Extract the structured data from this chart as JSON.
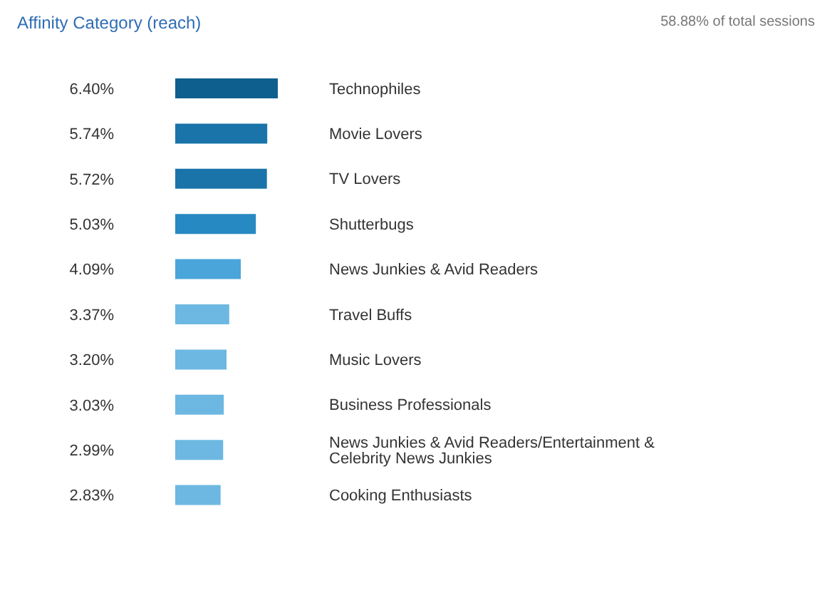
{
  "chart_data": {
    "type": "bar",
    "orientation": "horizontal",
    "title": "Affinity Category (reach)",
    "annotations": [
      "58.88% of total sessions"
    ],
    "categories": [
      "Technophiles",
      "Movie Lovers",
      "TV Lovers",
      "Shutterbugs",
      "News Junkies & Avid Readers",
      "Travel Buffs",
      "Music Lovers",
      "Business Professionals",
      "News Junkies & Avid Readers/Entertainment & Celebrity News Junkies",
      "Cooking Enthusiasts"
    ],
    "values": [
      6.4,
      5.74,
      5.72,
      5.03,
      4.09,
      3.37,
      3.2,
      3.03,
      2.99,
      2.83
    ],
    "value_labels": [
      "6.40%",
      "5.74%",
      "5.72%",
      "5.03%",
      "4.09%",
      "3.37%",
      "3.20%",
      "3.03%",
      "2.99%",
      "2.83%"
    ],
    "colors": [
      "#0e5f8e",
      "#1a74a9",
      "#1a74a9",
      "#2689c2",
      "#4aa5da",
      "#6cb8e2",
      "#6cb8e2",
      "#6cb8e2",
      "#6cb8e2",
      "#6cb8e2"
    ]
  }
}
